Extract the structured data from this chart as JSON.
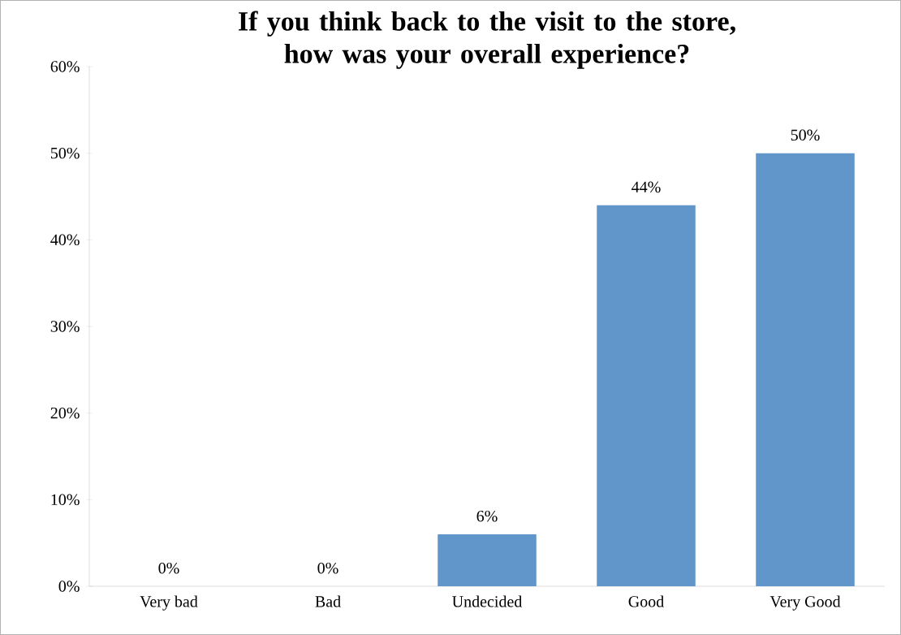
{
  "chart_data": {
    "type": "bar",
    "title": "If you think back to the visit to the store,\nhow was your overall experience?",
    "categories": [
      "Very bad",
      "Bad",
      "Undecided",
      "Good",
      "Very Good"
    ],
    "values": [
      0,
      0,
      6,
      44,
      50
    ],
    "value_labels": [
      "0%",
      "0%",
      "6%",
      "44%",
      "50%"
    ],
    "color": "#6096c9",
    "ylim": [
      0,
      60
    ],
    "yticks": [
      {
        "value": 0,
        "label": "0%"
      },
      {
        "value": 10,
        "label": "10%"
      },
      {
        "value": 20,
        "label": "20%"
      },
      {
        "value": 30,
        "label": "30%"
      },
      {
        "value": 40,
        "label": "40%"
      },
      {
        "value": 50,
        "label": "50%"
      },
      {
        "value": 60,
        "label": "60%"
      }
    ],
    "grid": false
  }
}
